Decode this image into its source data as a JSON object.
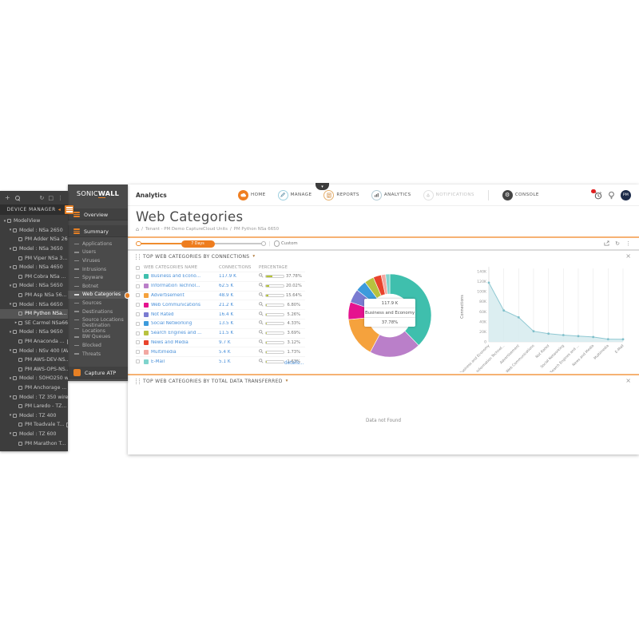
{
  "icons": {
    "plus": "+",
    "kebab": "⋮",
    "refresh": "↻",
    "box": "□",
    "caret_down": "▾",
    "caret_right": "▸",
    "close": "×",
    "home_breadcrumb": "⌂",
    "collapse_left": "◂",
    "chevron_down": "▾",
    "gear": "⚙",
    "pipe": "|"
  },
  "colors": {
    "accent": "#EF7D22",
    "link": "#4A90D9",
    "bar_fill": "#B5C234",
    "status_green": "#8CC63F",
    "status_warn": "#E5A33C",
    "area_fill": "#D6EBEF",
    "area_line": "#8FC8D2",
    "area_dot": "#7FBFCA"
  },
  "device_manager": {
    "title": "DEVICE MANAGER",
    "tree": [
      {
        "label": "ModelView",
        "level": 0,
        "caret": "down"
      },
      {
        "label": "Model : NSa 2650",
        "level": 1,
        "caret": "down"
      },
      {
        "label": "PM Adder NSa 2650",
        "level": 2,
        "status": "green"
      },
      {
        "label": "Model : NSa 3650",
        "level": 1,
        "caret": "down"
      },
      {
        "label": "PM Viper NSa 3...",
        "level": 2,
        "status": "green",
        "ha": true
      },
      {
        "label": "Model : NSa 4650",
        "level": 1,
        "caret": "down"
      },
      {
        "label": "PM Cobra NSa ...",
        "level": 2,
        "status": "green",
        "ha": true
      },
      {
        "label": "Model : NSa 5650",
        "level": 1,
        "caret": "down"
      },
      {
        "label": "PM Asp NSa 56...",
        "level": 2,
        "status": "green",
        "ha": true
      },
      {
        "label": "Model : NSa 6650",
        "level": 1,
        "caret": "down"
      },
      {
        "label": "PM Python NSa...",
        "level": 2,
        "status": "green",
        "ha": true,
        "selected": true
      },
      {
        "label": "SE Carmel NSa6650",
        "level": 2,
        "caret": "right",
        "status": "green"
      },
      {
        "label": "Model : NSa 9650",
        "level": 1,
        "caret": "down"
      },
      {
        "label": "PM Anaconda ...",
        "level": 2,
        "status": "green",
        "ha": true
      },
      {
        "label": "Model : NSv 400 (AWS)",
        "level": 1,
        "caret": "down"
      },
      {
        "label": "PM AWS-DEV-NS...",
        "level": 2,
        "status": "warn"
      },
      {
        "label": "PM AWS-OPS-NS...",
        "level": 2,
        "status": "warn"
      },
      {
        "label": "Model : SOHO250 wirele...",
        "level": 1,
        "caret": "down"
      },
      {
        "label": "PM Anchorage ...",
        "level": 2,
        "status": "green",
        "ha": true
      },
      {
        "label": "Model : TZ 350 wireless ...",
        "level": 1,
        "caret": "down"
      },
      {
        "label": "PM Laredo - TZ...",
        "level": 2,
        "status": "green",
        "ha": true
      },
      {
        "label": "Model : TZ 400",
        "level": 1,
        "caret": "down"
      },
      {
        "label": "PM Toadvale T...",
        "level": 2,
        "status": "green",
        "ha": true
      },
      {
        "label": "Model : TZ 600",
        "level": 1,
        "caret": "down"
      },
      {
        "label": "PM Marathon T...",
        "level": 2,
        "status": "green",
        "ha": true
      }
    ]
  },
  "sidebar": {
    "logo_sonic": "SONIC",
    "logo_w": "W",
    "logo_all": "ALL",
    "overview": "Overview",
    "summary": "Summary",
    "items": [
      {
        "label": "Applications"
      },
      {
        "label": "Users"
      },
      {
        "label": "Viruses"
      },
      {
        "label": "Intrusions"
      },
      {
        "label": "Spyware"
      },
      {
        "label": "Botnet"
      },
      {
        "label": "Web Categories",
        "active": true
      },
      {
        "label": "Sources"
      },
      {
        "label": "Destinations"
      },
      {
        "label": "Source Locations"
      },
      {
        "label": "Destination Locations"
      },
      {
        "label": "BW Queues"
      },
      {
        "label": "Blocked"
      },
      {
        "label": "Threats"
      }
    ],
    "capture": "Capture ATP"
  },
  "topnav": {
    "brand": "Analytics",
    "items": [
      {
        "label": "HOME"
      },
      {
        "label": "MANAGE"
      },
      {
        "label": "REPORTS"
      },
      {
        "label": "ANALYTICS"
      },
      {
        "label": "NOTIFICATIONS"
      },
      {
        "label": "CONSOLE"
      }
    ],
    "avatar": "PM"
  },
  "page": {
    "title": "Web Categories",
    "breadcrumb": {
      "sep1": "/",
      "crumb1": "Tenant - PM Demo CaptureCloud Units",
      "sep2": "/",
      "crumb2": "PM Python NSa 6650"
    }
  },
  "timebar": {
    "range_label": "7 Days",
    "custom_label": "Custom"
  },
  "sections": [
    {
      "title": "TOP WEB CATEGORIES BY CONNECTIONS"
    },
    {
      "title": "TOP WEB CATEGORIES BY TOTAL DATA TRANSFERRED",
      "empty_text": "Data not Found"
    }
  ],
  "table": {
    "headers": {
      "name": "WEB CATEGORIES NAME",
      "connections": "CONNECTIONS",
      "percentage": "PERCENTAGE"
    },
    "details_label": "details...",
    "rows": [
      {
        "name": "Business and Econo...",
        "connections": "117.9 K",
        "pct": 37.78,
        "pct_label": "37.78%",
        "color": "#3FBFAD"
      },
      {
        "name": "Information Technol...",
        "connections": "62.5 K",
        "pct": 20.02,
        "pct_label": "20.02%",
        "color": "#BA7FC9"
      },
      {
        "name": "Advertisement",
        "connections": "48.9 K",
        "pct": 15.64,
        "pct_label": "15.64%",
        "color": "#F5A23D"
      },
      {
        "name": "Web Communications",
        "connections": "21.2 K",
        "pct": 6.8,
        "pct_label": "6.80%",
        "color": "#E5128E"
      },
      {
        "name": "Not Rated",
        "connections": "16.4 K",
        "pct": 5.26,
        "pct_label": "5.26%",
        "color": "#7A7BD1"
      },
      {
        "name": "Social Networking",
        "connections": "13.5 K",
        "pct": 4.33,
        "pct_label": "4.33%",
        "color": "#3D9BDC"
      },
      {
        "name": "Search Engines and ...",
        "connections": "11.5 K",
        "pct": 3.69,
        "pct_label": "3.69%",
        "color": "#B8C23F"
      },
      {
        "name": "News and Media",
        "connections": "9.7 K",
        "pct": 3.12,
        "pct_label": "3.12%",
        "color": "#E8432C"
      },
      {
        "name": "Multimedia",
        "connections": "5.4 K",
        "pct": 1.73,
        "pct_label": "1.73%",
        "color": "#F2A8A2"
      },
      {
        "name": "E-Mail",
        "connections": "5.1 K",
        "pct": 1.63,
        "pct_label": "1.63%",
        "color": "#7FD4CD"
      }
    ]
  },
  "chart_data": [
    {
      "type": "pie",
      "variant": "donut",
      "labels": [
        "Business and Econo...",
        "Information Technol...",
        "Advertisement",
        "Web Communications",
        "Not Rated",
        "Social Networking",
        "Search Engines and ...",
        "News and Media",
        "Multimedia",
        "E-Mail"
      ],
      "values": [
        37.78,
        20.02,
        15.64,
        6.8,
        5.26,
        4.33,
        3.69,
        3.12,
        1.73,
        1.63
      ],
      "connections_k": [
        117.9,
        62.5,
        48.9,
        21.2,
        16.4,
        13.5,
        11.5,
        9.7,
        5.4,
        5.1
      ],
      "colors": [
        "#3FBFAD",
        "#BA7FC9",
        "#F5A23D",
        "#E5128E",
        "#7A7BD1",
        "#3D9BDC",
        "#B8C23F",
        "#E8432C",
        "#F2A8A2",
        "#7FD4CD"
      ],
      "center_tooltip": {
        "value": "117.9 K",
        "label": "Business and Economy",
        "pct": "37.78%"
      }
    },
    {
      "type": "area",
      "categories": [
        "Business and Economy",
        "Information Technol...",
        "Advertisement",
        "Web Communications",
        "Not Rated",
        "Social Networking",
        "Search Engines and ...",
        "News and Media",
        "Multimedia",
        "E-Mail"
      ],
      "values_k": [
        117.9,
        62.5,
        48.9,
        21.2,
        16.4,
        13.5,
        11.5,
        9.7,
        5.4,
        5.1
      ],
      "ylabel": "Connections",
      "yticks": [
        "0",
        "20K",
        "40K",
        "60K",
        "80K",
        "100K",
        "120K",
        "140K"
      ],
      "ylim": [
        0,
        140000
      ],
      "grid": "vertical"
    }
  ]
}
